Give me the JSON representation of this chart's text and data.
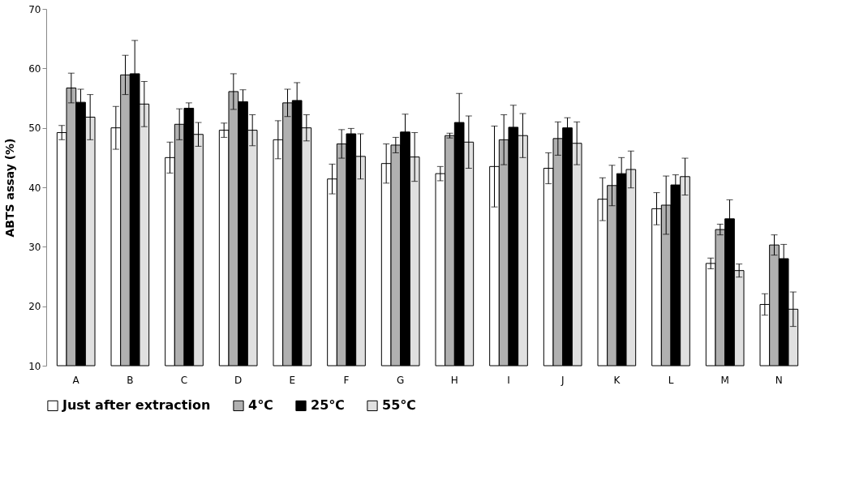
{
  "chart_data": {
    "type": "bar",
    "ylabel": "ABTS assay (%)",
    "categories": [
      "A",
      "B",
      "C",
      "D",
      "E",
      "F",
      "G",
      "H",
      "I",
      "J",
      "K",
      "L",
      "M",
      "N"
    ],
    "series": [
      {
        "name": "Just after extraction",
        "color": "#ffffff",
        "values": [
          49.2,
          50,
          45,
          49.6,
          48,
          41.4,
          44,
          42.3,
          43.5,
          43.2,
          38,
          36.4,
          27.2,
          20.3
        ],
        "errors": [
          1.2,
          3.6,
          2.6,
          1.2,
          3.2,
          2.5,
          3.3,
          1.2,
          6.8,
          2.6,
          3.6,
          2.7,
          0.9,
          1.8
        ]
      },
      {
        "name": "4℃",
        "color": "#b0b0b0",
        "values": [
          56.7,
          58.9,
          50.6,
          56.1,
          54.2,
          47.3,
          47.1,
          48.7,
          48,
          48.2,
          40.3,
          37,
          32.9,
          30.3
        ],
        "errors": [
          2.5,
          3.3,
          2.6,
          3,
          2.3,
          2.4,
          1.3,
          0.4,
          4.2,
          2.8,
          3.4,
          4.9,
          0.9,
          1.7
        ]
      },
      {
        "name": "25℃",
        "color": "#000000",
        "values": [
          54.3,
          59.1,
          53.3,
          54.4,
          54.6,
          49,
          49.3,
          50.9,
          50.1,
          50,
          42.3,
          40.4,
          34.7,
          28
        ],
        "errors": [
          2.2,
          5.6,
          0.9,
          2,
          3,
          0.9,
          3,
          4.9,
          3.7,
          1.7,
          2.7,
          1.7,
          3.2,
          2.4
        ]
      },
      {
        "name": "55℃",
        "color": "#e0e0e0",
        "values": [
          51.8,
          54,
          48.9,
          49.6,
          50,
          45.2,
          45.1,
          47.6,
          48.7,
          47.4,
          43,
          41.8,
          26,
          19.5
        ],
        "errors": [
          3.8,
          3.8,
          2,
          2.6,
          2.2,
          3.8,
          4.1,
          4.4,
          3.7,
          3.6,
          3.1,
          3.1,
          1.1,
          2.9
        ]
      }
    ],
    "ylim": [
      10,
      70
    ],
    "yticks": [
      10,
      20,
      30,
      40,
      50,
      60,
      70
    ],
    "grid": false,
    "legend": "bottom"
  }
}
